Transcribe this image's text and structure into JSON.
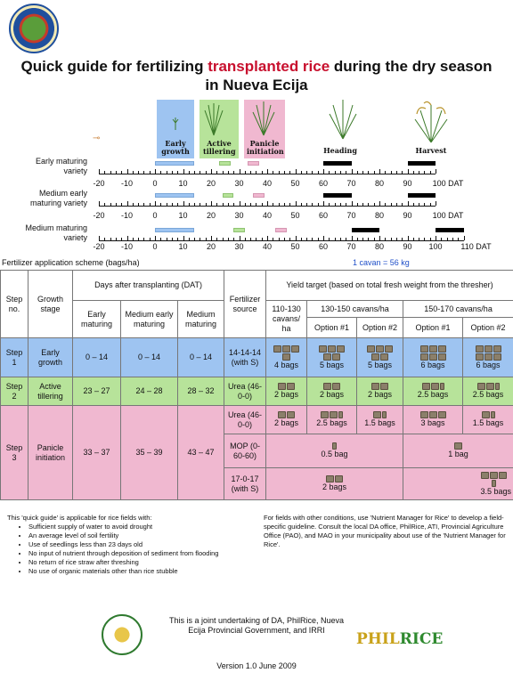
{
  "header": {
    "title_pre": "Quick guide for fertilizing ",
    "title_highlight": "transplanted rice",
    "title_post": " during the dry season in Nueva Ecija",
    "seal_text": "LALAWIGAN NG NUEVA ECIJA"
  },
  "stages": [
    {
      "label": "Early growth",
      "color": "#9ec4f1"
    },
    {
      "label": "Active tillering",
      "color": "#b7e39a"
    },
    {
      "label": "Panicle initiation",
      "color": "#f0b8d0"
    },
    {
      "label": "Heading",
      "color": "#ffffff"
    },
    {
      "label": "Harvest",
      "color": "#ffffff"
    }
  ],
  "varieties": [
    {
      "label": "Early maturing variety",
      "ticks": [
        "-20",
        "-10",
        "0",
        "10",
        "20",
        "30",
        "40",
        "50",
        "60",
        "70",
        "80",
        "90",
        "100 DAT"
      ]
    },
    {
      "label": "Medium early maturing variety",
      "ticks": [
        "-20",
        "-10",
        "0",
        "10",
        "20",
        "30",
        "40",
        "50",
        "60",
        "70",
        "80",
        "90",
        "100 DAT"
      ]
    },
    {
      "label": "Medium maturing variety",
      "ticks": [
        "-20",
        "-10",
        "0",
        "10",
        "20",
        "30",
        "40",
        "50",
        "60",
        "70",
        "80",
        "90",
        "100",
        "110 DAT"
      ]
    }
  ],
  "table": {
    "scheme_title": "Fertilizer application scheme (bags/ha)",
    "cavan_note": "1 cavan = 56 kg",
    "h_step": "Step no.",
    "h_growth": "Growth stage",
    "h_days": "Days after transplanting (DAT)",
    "h_early": "Early maturing",
    "h_medium_early": "Medium early maturing",
    "h_medium": "Medium maturing",
    "h_source": "Fertilizer source",
    "h_yield": "Yield target (based on total fresh weight from the thresher)",
    "h_y1": "110-130 cavans/ ha",
    "h_y2": "130-150 cavans/ha",
    "h_y3": "150-170 cavans/ha",
    "h_opt1": "Option #1",
    "h_opt2": "Option #2",
    "h_opt3": "Option #1",
    "h_opt4": "Option #2",
    "rows": [
      {
        "step": "Step 1",
        "stage": "Early growth",
        "early": "0 – 14",
        "medium_early": "0 – 14",
        "medium": "0 – 14",
        "source": "14-14-14 (with S)",
        "q": [
          "4 bags",
          "5 bags",
          "5 bags",
          "6 bags",
          "6 bags"
        ]
      },
      {
        "step": "Step 2",
        "stage": "Active tillering",
        "early": "23 – 27",
        "medium_early": "24 – 28",
        "medium": "28 – 32",
        "source": "Urea (46-0-0)",
        "q": [
          "2 bags",
          "2 bags",
          "2 bags",
          "2.5 bags",
          "2.5 bags"
        ]
      },
      {
        "step": "Step 3",
        "stage": "Panicle initiation",
        "early": "33 – 37",
        "medium_early": "35 – 39",
        "medium": "43 – 47",
        "sub": [
          {
            "source": "Urea (46-0-0)",
            "q": [
              "2 bags",
              "2.5 bags",
              "1.5 bags",
              "3 bags",
              "1.5 bags"
            ]
          },
          {
            "source": "MOP (0-60-60)",
            "q": [
              "0.5 bag",
              "1 bag"
            ]
          },
          {
            "source": "17-0-17 (with S)",
            "q": [
              "2 bags",
              "3.5 bags"
            ]
          }
        ]
      }
    ]
  },
  "notes": {
    "left_intro": "This 'quick guide' is applicable for rice fields with:",
    "left_items": [
      "Sufficient supply of water to avoid drought",
      "An average level of soil fertility",
      "Use of seedlings less than 23 days old",
      "No input of nutrient through deposition of sediment from flooding",
      "No return of rice straw after threshing",
      "No use of organic materials other than rice stubble"
    ],
    "right": "For fields with other conditions, use 'Nutrient Manager for Rice' to develop a field-specific guideline. Consult the local DA office, PhilRice, ATI, Provincial Agriculture Office (PAO), and MAO in your municipality about use of the 'Nutrient Manager for Rice'."
  },
  "footer": {
    "joint": "This is a joint undertaking of DA, PhilRice, Nueva Ecija Provincial Government, and IRRI",
    "version": "Version 1.0 June 2009",
    "logo_text_a": "PHIL",
    "logo_text_b": "RICE"
  }
}
